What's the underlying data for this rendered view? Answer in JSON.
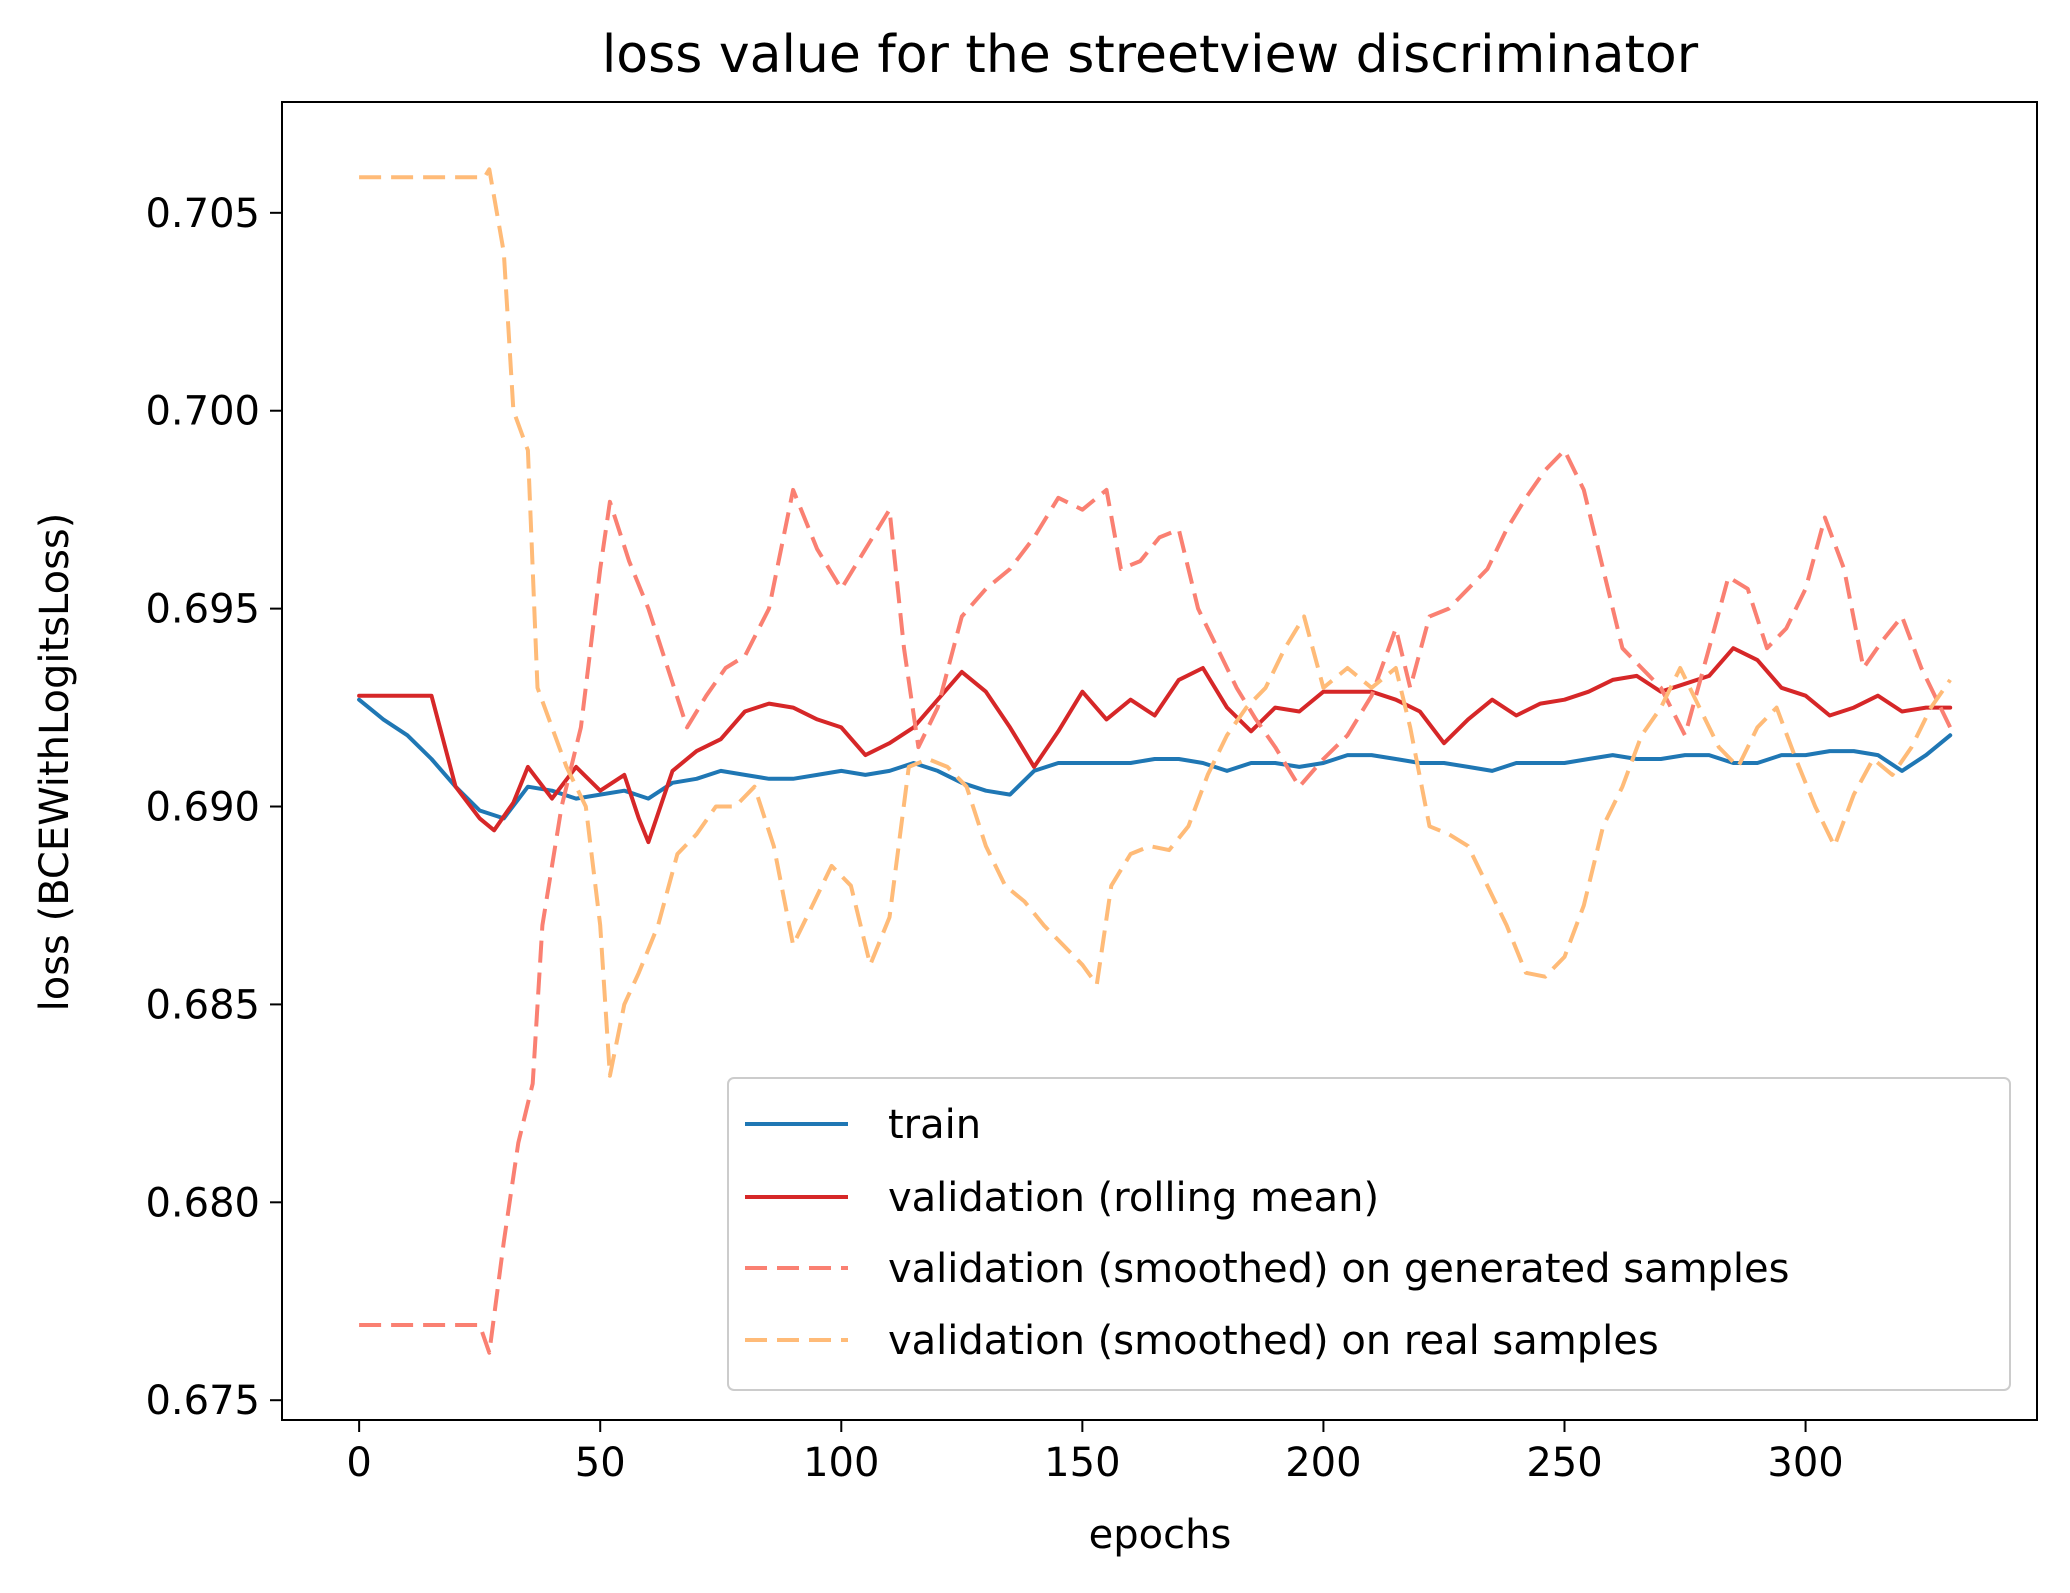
{
  "chart_data": {
    "type": "line",
    "title": "loss value for the streetview discriminator",
    "xlabel": "epochs",
    "ylabel": "loss (BCEWithLogitsLoss)",
    "xlim": [
      -16,
      348
    ],
    "ylim": [
      0.6745,
      0.7078
    ],
    "xticks": [
      0,
      50,
      100,
      150,
      200,
      250,
      300
    ],
    "xtick_labels": [
      "0",
      "50",
      "100",
      "150",
      "200",
      "250",
      "300"
    ],
    "yticks": [
      0.675,
      0.68,
      0.685,
      0.69,
      0.695,
      0.7,
      0.705
    ],
    "ytick_labels": [
      "0.675",
      "0.680",
      "0.685",
      "0.690",
      "0.695",
      "0.700",
      "0.705"
    ],
    "grid": false,
    "legend_position": "lower-right",
    "series": [
      {
        "name": "train",
        "color": "#1f77b4",
        "style": "solid",
        "points": [
          [
            0,
            0.6927
          ],
          [
            5,
            0.6922
          ],
          [
            10,
            0.6918
          ],
          [
            15,
            0.6912
          ],
          [
            20,
            0.6905
          ],
          [
            25,
            0.6899
          ],
          [
            30,
            0.6897
          ],
          [
            35,
            0.6905
          ],
          [
            40,
            0.6904
          ],
          [
            45,
            0.6902
          ],
          [
            50,
            0.6903
          ],
          [
            55,
            0.6904
          ],
          [
            60,
            0.6902
          ],
          [
            65,
            0.6906
          ],
          [
            70,
            0.6907
          ],
          [
            75,
            0.6909
          ],
          [
            80,
            0.6908
          ],
          [
            85,
            0.6907
          ],
          [
            90,
            0.6907
          ],
          [
            95,
            0.6908
          ],
          [
            100,
            0.6909
          ],
          [
            105,
            0.6908
          ],
          [
            110,
            0.6909
          ],
          [
            115,
            0.6911
          ],
          [
            120,
            0.6909
          ],
          [
            125,
            0.6906
          ],
          [
            130,
            0.6904
          ],
          [
            135,
            0.6903
          ],
          [
            140,
            0.6909
          ],
          [
            145,
            0.6911
          ],
          [
            150,
            0.6911
          ],
          [
            155,
            0.6911
          ],
          [
            160,
            0.6911
          ],
          [
            165,
            0.6912
          ],
          [
            170,
            0.6912
          ],
          [
            175,
            0.6911
          ],
          [
            180,
            0.6909
          ],
          [
            185,
            0.6911
          ],
          [
            190,
            0.6911
          ],
          [
            195,
            0.691
          ],
          [
            200,
            0.6911
          ],
          [
            205,
            0.6913
          ],
          [
            210,
            0.6913
          ],
          [
            215,
            0.6912
          ],
          [
            220,
            0.6911
          ],
          [
            225,
            0.6911
          ],
          [
            230,
            0.691
          ],
          [
            235,
            0.6909
          ],
          [
            240,
            0.6911
          ],
          [
            245,
            0.6911
          ],
          [
            250,
            0.6911
          ],
          [
            255,
            0.6912
          ],
          [
            260,
            0.6913
          ],
          [
            265,
            0.6912
          ],
          [
            270,
            0.6912
          ],
          [
            275,
            0.6913
          ],
          [
            280,
            0.6913
          ],
          [
            285,
            0.6911
          ],
          [
            290,
            0.6911
          ],
          [
            295,
            0.6913
          ],
          [
            300,
            0.6913
          ],
          [
            305,
            0.6914
          ],
          [
            310,
            0.6914
          ],
          [
            315,
            0.6913
          ],
          [
            320,
            0.6909
          ],
          [
            325,
            0.6913
          ],
          [
            330,
            0.6918
          ]
        ]
      },
      {
        "name": "validation (rolling mean)",
        "color": "#d62728",
        "style": "solid",
        "points": [
          [
            0,
            0.6928
          ],
          [
            15,
            0.6928
          ],
          [
            20,
            0.6905
          ],
          [
            25,
            0.6897
          ],
          [
            28,
            0.6894
          ],
          [
            32,
            0.6901
          ],
          [
            35,
            0.691
          ],
          [
            40,
            0.6902
          ],
          [
            45,
            0.691
          ],
          [
            50,
            0.6904
          ],
          [
            55,
            0.6908
          ],
          [
            58,
            0.6897
          ],
          [
            60,
            0.6891
          ],
          [
            65,
            0.6909
          ],
          [
            70,
            0.6914
          ],
          [
            75,
            0.6917
          ],
          [
            80,
            0.6924
          ],
          [
            85,
            0.6926
          ],
          [
            90,
            0.6925
          ],
          [
            95,
            0.6922
          ],
          [
            100,
            0.692
          ],
          [
            105,
            0.6913
          ],
          [
            110,
            0.6916
          ],
          [
            115,
            0.692
          ],
          [
            120,
            0.6927
          ],
          [
            125,
            0.6934
          ],
          [
            130,
            0.6929
          ],
          [
            135,
            0.692
          ],
          [
            140,
            0.691
          ],
          [
            145,
            0.6919
          ],
          [
            150,
            0.6929
          ],
          [
            155,
            0.6922
          ],
          [
            160,
            0.6927
          ],
          [
            165,
            0.6923
          ],
          [
            170,
            0.6932
          ],
          [
            175,
            0.6935
          ],
          [
            180,
            0.6925
          ],
          [
            185,
            0.6919
          ],
          [
            190,
            0.6925
          ],
          [
            195,
            0.6924
          ],
          [
            200,
            0.6929
          ],
          [
            205,
            0.6929
          ],
          [
            210,
            0.6929
          ],
          [
            215,
            0.6927
          ],
          [
            220,
            0.6924
          ],
          [
            225,
            0.6916
          ],
          [
            230,
            0.6922
          ],
          [
            235,
            0.6927
          ],
          [
            240,
            0.6923
          ],
          [
            245,
            0.6926
          ],
          [
            250,
            0.6927
          ],
          [
            255,
            0.6929
          ],
          [
            260,
            0.6932
          ],
          [
            265,
            0.6933
          ],
          [
            270,
            0.6929
          ],
          [
            275,
            0.6931
          ],
          [
            280,
            0.6933
          ],
          [
            285,
            0.694
          ],
          [
            290,
            0.6937
          ],
          [
            295,
            0.693
          ],
          [
            300,
            0.6928
          ],
          [
            305,
            0.6923
          ],
          [
            310,
            0.6925
          ],
          [
            315,
            0.6928
          ],
          [
            320,
            0.6924
          ],
          [
            325,
            0.6925
          ],
          [
            330,
            0.6925
          ]
        ]
      },
      {
        "name": "validation (smoothed) on generated samples",
        "color": "#fa8072",
        "style": "dashed",
        "points": [
          [
            0,
            0.6769
          ],
          [
            25,
            0.6769
          ],
          [
            27,
            0.6762
          ],
          [
            30,
            0.679
          ],
          [
            33,
            0.6815
          ],
          [
            36,
            0.683
          ],
          [
            38,
            0.687
          ],
          [
            42,
            0.69
          ],
          [
            46,
            0.692
          ],
          [
            50,
            0.696
          ],
          [
            52,
            0.6977
          ],
          [
            56,
            0.6962
          ],
          [
            60,
            0.695
          ],
          [
            64,
            0.6935
          ],
          [
            68,
            0.692
          ],
          [
            72,
            0.6928
          ],
          [
            76,
            0.6935
          ],
          [
            80,
            0.6938
          ],
          [
            85,
            0.695
          ],
          [
            90,
            0.698
          ],
          [
            95,
            0.6965
          ],
          [
            100,
            0.6955
          ],
          [
            105,
            0.6965
          ],
          [
            110,
            0.6975
          ],
          [
            113,
            0.694
          ],
          [
            116,
            0.6915
          ],
          [
            120,
            0.6925
          ],
          [
            125,
            0.6948
          ],
          [
            130,
            0.6955
          ],
          [
            135,
            0.696
          ],
          [
            140,
            0.6968
          ],
          [
            145,
            0.6978
          ],
          [
            150,
            0.6975
          ],
          [
            155,
            0.698
          ],
          [
            158,
            0.696
          ],
          [
            162,
            0.6962
          ],
          [
            166,
            0.6968
          ],
          [
            170,
            0.697
          ],
          [
            174,
            0.695
          ],
          [
            178,
            0.694
          ],
          [
            182,
            0.693
          ],
          [
            186,
            0.6922
          ],
          [
            190,
            0.6915
          ],
          [
            195,
            0.6905
          ],
          [
            200,
            0.6912
          ],
          [
            205,
            0.6918
          ],
          [
            210,
            0.6928
          ],
          [
            215,
            0.6945
          ],
          [
            218,
            0.693
          ],
          [
            222,
            0.6948
          ],
          [
            226,
            0.695
          ],
          [
            230,
            0.6955
          ],
          [
            234,
            0.696
          ],
          [
            238,
            0.697
          ],
          [
            242,
            0.6978
          ],
          [
            246,
            0.6985
          ],
          [
            250,
            0.699
          ],
          [
            254,
            0.698
          ],
          [
            258,
            0.696
          ],
          [
            262,
            0.694
          ],
          [
            266,
            0.6935
          ],
          [
            270,
            0.693
          ],
          [
            275,
            0.6918
          ],
          [
            280,
            0.694
          ],
          [
            284,
            0.6958
          ],
          [
            288,
            0.6955
          ],
          [
            292,
            0.694
          ],
          [
            296,
            0.6945
          ],
          [
            300,
            0.6955
          ],
          [
            304,
            0.6973
          ],
          [
            308,
            0.696
          ],
          [
            312,
            0.6935
          ],
          [
            316,
            0.6942
          ],
          [
            320,
            0.6948
          ],
          [
            324,
            0.6935
          ],
          [
            328,
            0.6925
          ],
          [
            330,
            0.692
          ]
        ]
      },
      {
        "name": "validation (smoothed) on real samples",
        "color": "#ffbb78",
        "style": "dashed",
        "points": [
          [
            0,
            0.7059
          ],
          [
            26,
            0.7059
          ],
          [
            27,
            0.7061
          ],
          [
            30,
            0.704
          ],
          [
            32,
            0.7
          ],
          [
            35,
            0.699
          ],
          [
            37,
            0.693
          ],
          [
            40,
            0.692
          ],
          [
            43,
            0.691
          ],
          [
            47,
            0.69
          ],
          [
            50,
            0.687
          ],
          [
            52,
            0.6832
          ],
          [
            55,
            0.685
          ],
          [
            58,
            0.6858
          ],
          [
            62,
            0.687
          ],
          [
            66,
            0.6888
          ],
          [
            70,
            0.6893
          ],
          [
            74,
            0.69
          ],
          [
            78,
            0.69
          ],
          [
            82,
            0.6905
          ],
          [
            86,
            0.689
          ],
          [
            90,
            0.6865
          ],
          [
            94,
            0.6875
          ],
          [
            98,
            0.6885
          ],
          [
            102,
            0.688
          ],
          [
            106,
            0.686
          ],
          [
            110,
            0.6872
          ],
          [
            114,
            0.691
          ],
          [
            118,
            0.6912
          ],
          [
            122,
            0.691
          ],
          [
            126,
            0.6905
          ],
          [
            130,
            0.689
          ],
          [
            134,
            0.688
          ],
          [
            138,
            0.6876
          ],
          [
            142,
            0.687
          ],
          [
            146,
            0.6865
          ],
          [
            150,
            0.686
          ],
          [
            153,
            0.6855
          ],
          [
            156,
            0.688
          ],
          [
            160,
            0.6888
          ],
          [
            164,
            0.689
          ],
          [
            168,
            0.6889
          ],
          [
            172,
            0.6895
          ],
          [
            176,
            0.6908
          ],
          [
            180,
            0.6918
          ],
          [
            184,
            0.6925
          ],
          [
            188,
            0.693
          ],
          [
            192,
            0.694
          ],
          [
            196,
            0.6948
          ],
          [
            200,
            0.693
          ],
          [
            205,
            0.6935
          ],
          [
            210,
            0.693
          ],
          [
            215,
            0.6935
          ],
          [
            218,
            0.692
          ],
          [
            222,
            0.6895
          ],
          [
            226,
            0.6893
          ],
          [
            230,
            0.689
          ],
          [
            234,
            0.688
          ],
          [
            238,
            0.687
          ],
          [
            242,
            0.6858
          ],
          [
            246,
            0.6857
          ],
          [
            250,
            0.6862
          ],
          [
            254,
            0.6875
          ],
          [
            258,
            0.6895
          ],
          [
            262,
            0.6905
          ],
          [
            266,
            0.6918
          ],
          [
            270,
            0.6925
          ],
          [
            274,
            0.6935
          ],
          [
            278,
            0.6925
          ],
          [
            282,
            0.6915
          ],
          [
            286,
            0.691
          ],
          [
            290,
            0.692
          ],
          [
            294,
            0.6925
          ],
          [
            298,
            0.6912
          ],
          [
            302,
            0.69
          ],
          [
            306,
            0.689
          ],
          [
            310,
            0.6903
          ],
          [
            314,
            0.6912
          ],
          [
            318,
            0.6908
          ],
          [
            322,
            0.6915
          ],
          [
            326,
            0.6925
          ],
          [
            330,
            0.6932
          ]
        ]
      }
    ]
  }
}
